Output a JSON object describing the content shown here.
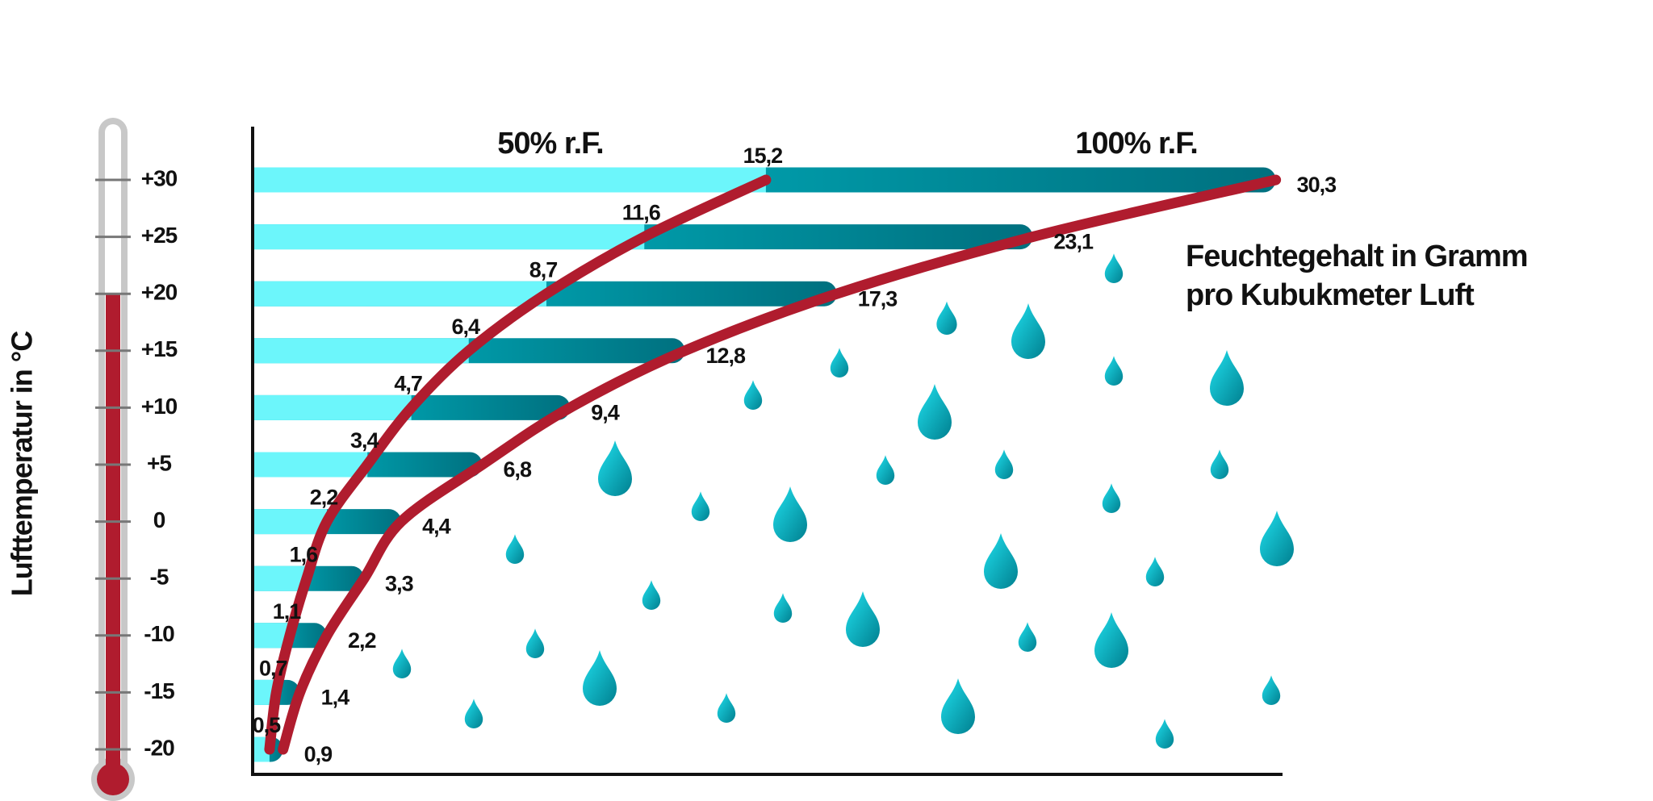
{
  "chart_data": {
    "type": "bar",
    "y_axis_label": "Lufttemperatur in °C",
    "note": [
      "Feuchtegehalt in Gramm",
      "pro Kubukmeter Luft"
    ],
    "categories": [
      "+30",
      "+25",
      "+20",
      "+15",
      "+10",
      "+5",
      "0",
      "-5",
      "-10",
      "-15",
      "-20"
    ],
    "series": [
      {
        "name": "50% r.F.",
        "color": "#6cf6fb",
        "line_color": "#b01c2e",
        "values": [
          15.2,
          11.6,
          8.7,
          6.4,
          4.7,
          3.4,
          2.2,
          1.6,
          1.1,
          0.7,
          0.5
        ],
        "value_labels": [
          "15,2",
          "11,6",
          "8,7",
          "6,4",
          "4,7",
          "3,4",
          "2,2",
          "1,6",
          "1,1",
          "0,7",
          "0,5"
        ]
      },
      {
        "name": "100% r.F.",
        "color": "#008796",
        "line_color": "#b01c2e",
        "values": [
          30.3,
          23.1,
          17.3,
          12.8,
          9.4,
          6.8,
          4.4,
          3.3,
          2.2,
          1.4,
          0.9
        ],
        "value_labels": [
          "30,3",
          "23,1",
          "17,3",
          "12,8",
          "9,4",
          "6,8",
          "4,4",
          "3,3",
          "2,2",
          "1,4",
          "0,9"
        ]
      }
    ],
    "xlim": [
      0,
      30.5
    ]
  }
}
